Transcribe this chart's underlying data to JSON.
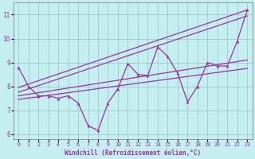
{
  "xlabel": "Windchill (Refroidissement éolien,°C)",
  "bg_color": "#c5eef0",
  "grid_color": "#a0c8ca",
  "line_color": "#993399",
  "xlim": [
    -0.5,
    23.5
  ],
  "ylim": [
    5.8,
    11.5
  ],
  "yticks": [
    6,
    7,
    8,
    9,
    10,
    11
  ],
  "xticks": [
    0,
    1,
    2,
    3,
    4,
    5,
    6,
    7,
    8,
    9,
    10,
    11,
    12,
    13,
    14,
    15,
    16,
    17,
    18,
    19,
    20,
    21,
    22,
    23
  ],
  "series1_x": [
    0,
    1,
    2,
    3,
    4,
    5,
    6,
    7,
    8,
    9,
    10,
    11,
    12,
    13,
    14,
    15,
    16,
    17,
    18,
    19,
    20,
    21,
    22,
    23
  ],
  "series1_y": [
    8.8,
    8.0,
    7.6,
    7.6,
    7.5,
    7.6,
    7.3,
    6.35,
    6.15,
    7.3,
    7.9,
    8.95,
    8.5,
    8.45,
    9.65,
    9.25,
    8.55,
    7.35,
    8.0,
    9.0,
    8.85,
    8.85,
    9.9,
    11.2
  ],
  "trend1_x": [
    0,
    23
  ],
  "trend1_y": [
    7.95,
    11.2
  ],
  "trend2_x": [
    0,
    23
  ],
  "trend2_y": [
    7.75,
    10.95
  ],
  "trend3_x": [
    0,
    23
  ],
  "trend3_y": [
    7.6,
    9.1
  ],
  "trend4_x": [
    0,
    23
  ],
  "trend4_y": [
    7.45,
    8.75
  ]
}
